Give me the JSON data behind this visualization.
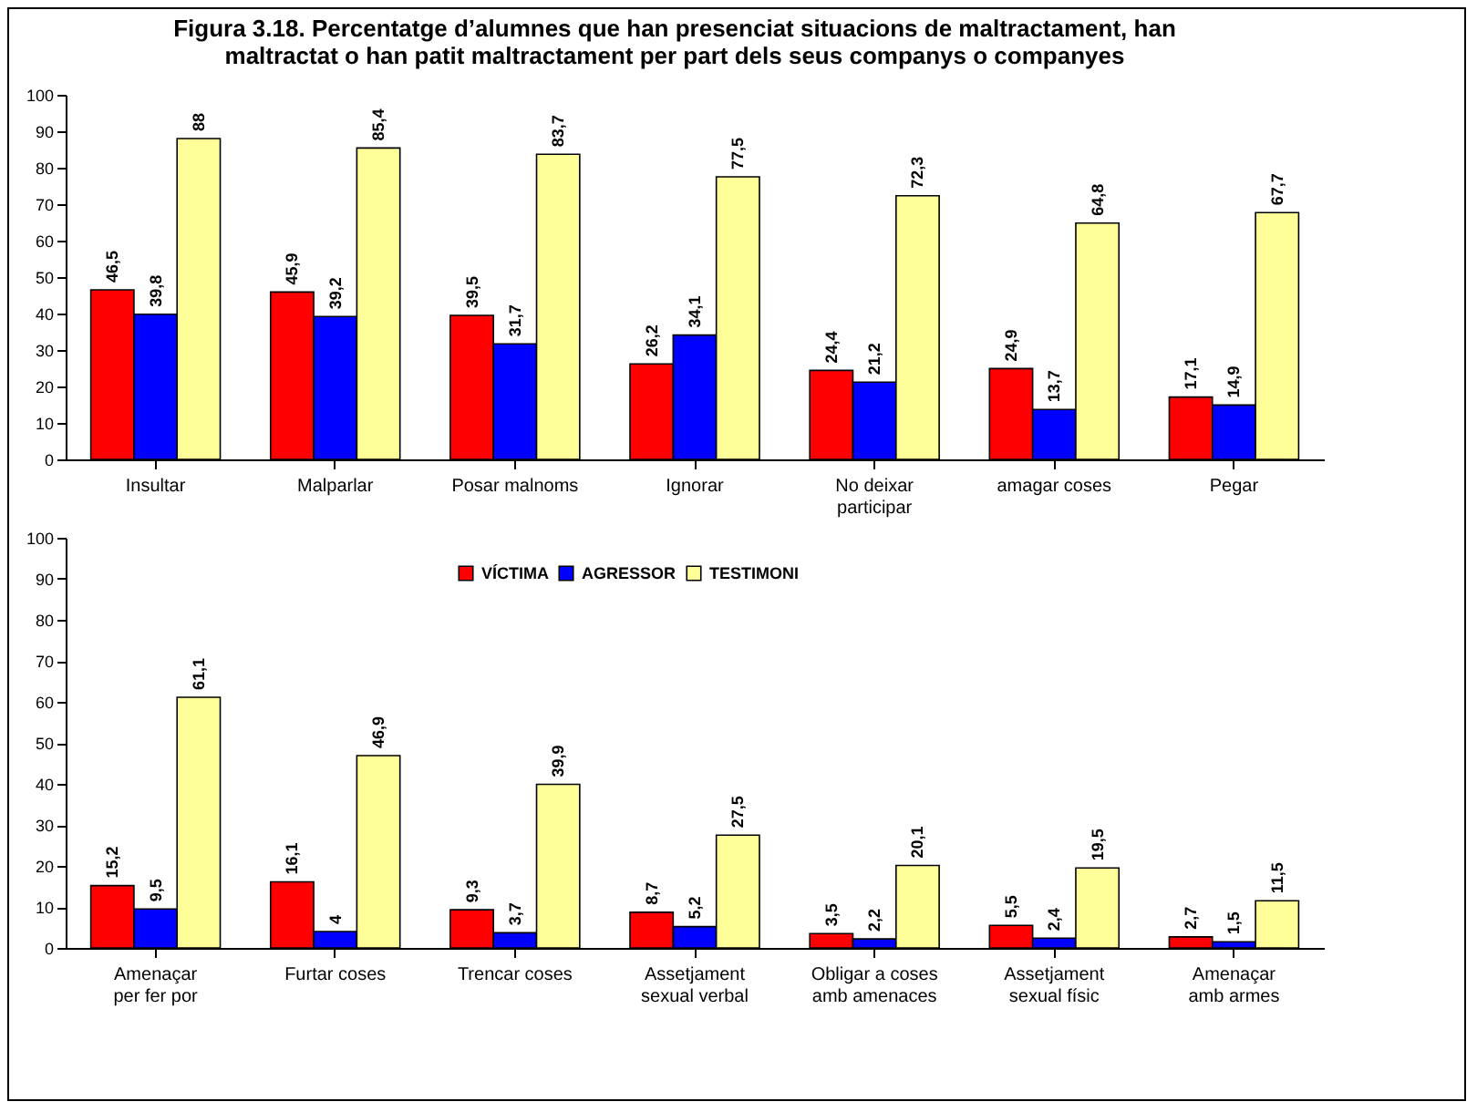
{
  "chart_data": [
    {
      "type": "bar",
      "title": "Figura 3.18. Percentatge d’alumnes que han presenciat situacions de maltractament, han maltractat o han patit maltractament per part dels seus companys o companyes",
      "categories": [
        "Insultar",
        "Malparlar",
        "Posar malnoms",
        "Ignorar",
        "No deixar participar",
        "amagar coses",
        "Pegar"
      ],
      "series": [
        {
          "color": "#ff0000",
          "values": [
            46.5,
            45.9,
            39.5,
            26.2,
            24.4,
            24.9,
            17.1
          ],
          "value_labels": [
            "46,5",
            "45,9",
            "39,5",
            "26,2",
            "24,4",
            "24,9",
            "17,1"
          ]
        },
        {
          "color": "#0000ff",
          "values": [
            39.8,
            39.2,
            31.7,
            34.1,
            21.2,
            13.7,
            14.9
          ],
          "value_labels": [
            "39,8",
            "39,2",
            "31,7",
            "34,1",
            "21,2",
            "13,7",
            "14,9"
          ]
        },
        {
          "color": "#ffff99",
          "values": [
            88,
            85.4,
            83.7,
            77.5,
            72.3,
            64.8,
            67.7
          ],
          "value_labels": [
            "88",
            "85,4",
            "83,7",
            "77,5",
            "72,3",
            "64,8",
            "67,7"
          ]
        }
      ],
      "ylim": [
        0,
        100
      ],
      "yticks": [
        0,
        10,
        20,
        30,
        40,
        50,
        60,
        70,
        80,
        90,
        100
      ],
      "grid": false
    },
    {
      "type": "bar",
      "categories": [
        "Amenaçar per fer por",
        "Furtar coses",
        "Trencar coses",
        "Assetjament sexual verbal",
        "Obligar a coses amb amenaces",
        "Assetjament sexual físic",
        "Amenaçar amb armes"
      ],
      "series": [
        {
          "name": "VÍCTIMA",
          "color": "#ff0000",
          "values": [
            15.2,
            16.1,
            9.3,
            8.7,
            3.5,
            5.5,
            2.7
          ],
          "value_labels": [
            "15,2",
            "16,1",
            "9,3",
            "8,7",
            "3,5",
            "5,5",
            "2,7"
          ]
        },
        {
          "name": "AGRESSOR",
          "color": "#0000ff",
          "values": [
            9.5,
            4,
            3.7,
            5.2,
            2.2,
            2.4,
            1.5
          ],
          "value_labels": [
            "9,5",
            "4",
            "3,7",
            "5,2",
            "2,2",
            "2,4",
            "1,5"
          ]
        },
        {
          "name": "TESTIMONI",
          "color": "#ffff99",
          "values": [
            61.1,
            46.9,
            39.9,
            27.5,
            20.1,
            19.5,
            11.5
          ],
          "value_labels": [
            "61,1",
            "46,9",
            "39,9",
            "27,5",
            "20,1",
            "19,5",
            "11,5"
          ]
        }
      ],
      "ylim": [
        0,
        100
      ],
      "yticks": [
        0,
        10,
        20,
        30,
        40,
        50,
        60,
        70,
        80,
        90,
        100
      ],
      "grid": false,
      "legend": "top"
    }
  ]
}
